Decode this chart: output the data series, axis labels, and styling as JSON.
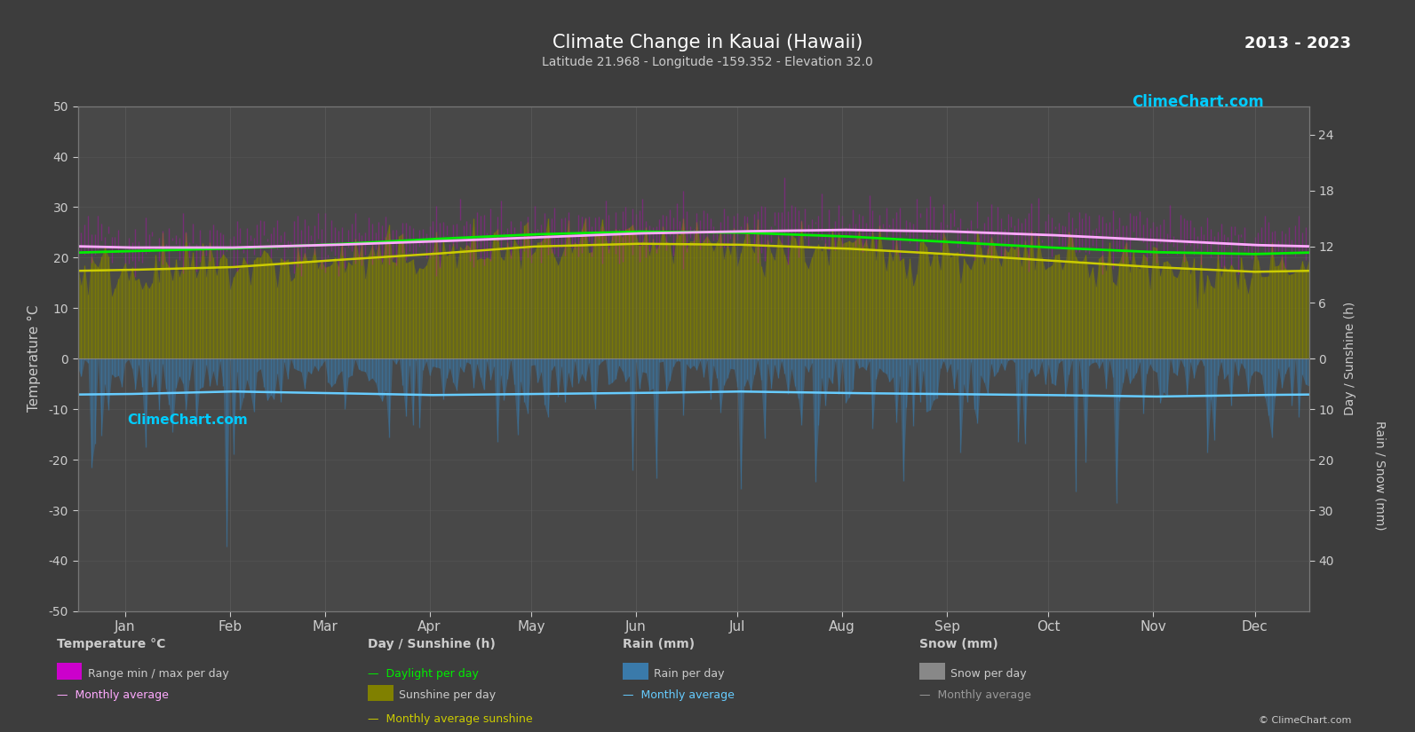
{
  "title": "Climate Change in Kauai (Hawaii)",
  "subtitle": "Latitude 21.968 - Longitude -159.352 - Elevation 32.0",
  "year_range": "2013 - 2023",
  "background_color": "#3d3d3d",
  "plot_bg_color": "#484848",
  "grid_color": "#5a5a5a",
  "text_color": "#cccccc",
  "white_color": "#ffffff",
  "ylim_left": [
    -50,
    50
  ],
  "months": [
    "Jan",
    "Feb",
    "Mar",
    "Apr",
    "May",
    "Jun",
    "Jul",
    "Aug",
    "Sep",
    "Oct",
    "Nov",
    "Dec"
  ],
  "month_positions": [
    15,
    46,
    74,
    105,
    135,
    166,
    196,
    227,
    258,
    288,
    319,
    349
  ],
  "temp_max_monthly": [
    25.0,
    25.2,
    25.8,
    26.5,
    27.2,
    27.8,
    28.0,
    28.2,
    28.0,
    27.5,
    26.5,
    25.5
  ],
  "temp_min_monthly": [
    20.5,
    20.3,
    20.5,
    21.0,
    21.8,
    22.5,
    23.0,
    23.2,
    23.0,
    22.5,
    21.5,
    20.8
  ],
  "temp_avg_monthly": [
    22.0,
    22.0,
    22.5,
    23.2,
    24.0,
    24.8,
    25.2,
    25.5,
    25.2,
    24.5,
    23.5,
    22.5
  ],
  "daylight_monthly": [
    11.5,
    11.8,
    12.2,
    12.8,
    13.3,
    13.6,
    13.5,
    13.1,
    12.5,
    11.9,
    11.4,
    11.2
  ],
  "sunshine_avg_monthly": [
    9.5,
    9.8,
    10.5,
    11.2,
    12.0,
    12.3,
    12.2,
    11.8,
    11.2,
    10.5,
    9.8,
    9.3
  ],
  "rain_monthly_avg": [
    7.0,
    6.5,
    6.8,
    7.2,
    7.0,
    6.8,
    6.5,
    6.8,
    7.0,
    7.2,
    7.5,
    7.2
  ],
  "rain_color": "#3a7aaa",
  "sunshine_bar_color": "#808000",
  "temp_range_color": "#cc00cc",
  "daylight_color": "#00ee00",
  "sunshine_avg_color": "#cccc00",
  "temp_avg_color": "#ffaaff",
  "rain_avg_color": "#66ccff",
  "snow_color": "#999999",
  "sunshine_scale": 1.85,
  "rain_scale": 1.0
}
